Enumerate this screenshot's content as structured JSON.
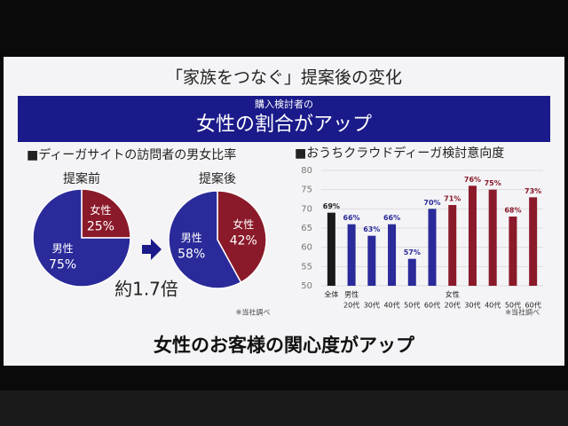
{
  "slide": {
    "title": "「家族をつなぐ」提案後の変化",
    "banner_sub": "購入検討者の",
    "banner_title": "女性の割合がアップ",
    "left_heading": "■ディーガサイトの訪問者の男女比率",
    "ratio_note": "約1.7倍",
    "left_note": "※当社調べ",
    "conclusion": "女性のお客様の関心度がアップ"
  },
  "chart_data": [
    {
      "type": "pie",
      "title": "提案前",
      "categories": [
        "男性",
        "女性"
      ],
      "values": [
        75,
        25
      ],
      "value_labels": [
        "75%",
        "25%"
      ],
      "colors": [
        "#2a2a9a",
        "#8a1a2a"
      ]
    },
    {
      "type": "pie",
      "title": "提案後",
      "categories": [
        "男性",
        "女性"
      ],
      "values": [
        58,
        42
      ],
      "value_labels": [
        "58%",
        "42%"
      ],
      "colors": [
        "#2a2a9a",
        "#8a1a2a"
      ]
    },
    {
      "type": "bar",
      "title": "■おうちクラウドディーガ検討意向度",
      "note": "※当社調べ",
      "categories": [
        "全体",
        "20代",
        "30代",
        "40代",
        "50代",
        "60代",
        "20代",
        "30代",
        "40代",
        "50代",
        "60代"
      ],
      "group_labels": [
        "男性",
        "女性"
      ],
      "values": [
        69,
        66,
        63,
        66,
        57,
        70,
        71,
        76,
        75,
        68,
        73
      ],
      "value_labels": [
        "69%",
        "66%",
        "63%",
        "66%",
        "57%",
        "70%",
        "71%",
        "76%",
        "75%",
        "68%",
        "73%"
      ],
      "colors": [
        "#1a1a1a",
        "#2a2a9a",
        "#2a2a9a",
        "#2a2a9a",
        "#2a2a9a",
        "#2a2a9a",
        "#8a1a2a",
        "#8a1a2a",
        "#8a1a2a",
        "#8a1a2a",
        "#8a1a2a"
      ],
      "ylim": [
        50,
        80
      ],
      "yticks": [
        50,
        55,
        60,
        65,
        70,
        75,
        80
      ],
      "grid": true
    }
  ]
}
